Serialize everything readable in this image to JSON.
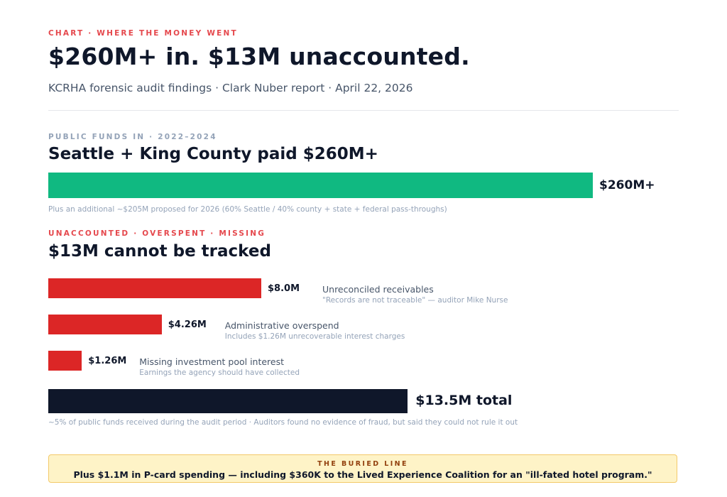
{
  "header": {
    "eyebrow": "CHART · WHERE THE MONEY WENT",
    "title": "$260M+ in. $13M unaccounted.",
    "subtitle": "KCRHA forensic audit findings · Clark Nuber report · April 22, 2026"
  },
  "funds_section": {
    "eyebrow": "PUBLIC FUNDS IN · 2022–2024",
    "title": "Seattle + King County paid $260M+",
    "note": "Plus an additional ~$205M proposed for 2026 (60% Seattle / 40% county + state + federal pass-throughs)"
  },
  "unaccounted_section": {
    "eyebrow": "UNACCOUNTED · OVERSPENT · MISSING",
    "title": "$13M cannot be tracked",
    "footnote": "~5% of public funds received during the audit period · Auditors found no evidence of fraud, but said they could not rule it out"
  },
  "callout": {
    "label": "THE BURIED LINE",
    "text": "Plus $1.1M in P-card spending — including $360K to the Lived Experience Coalition for an \"ill-fated hotel program.\""
  },
  "colors": {
    "funds": "#10b981",
    "unaccounted": "#dc2626",
    "total": "#0f172a",
    "accent_red": "#e5484d"
  },
  "chart_data": [
    {
      "type": "bar",
      "orientation": "horizontal",
      "categories": [
        "Public funds in"
      ],
      "values": [
        260
      ],
      "value_labels": [
        "$260M+"
      ],
      "unit": "$M"
    },
    {
      "type": "bar",
      "orientation": "horizontal",
      "unit": "$M",
      "categories": [
        "Unreconciled receivables",
        "Administrative overspend",
        "Missing investment pool interest"
      ],
      "values": [
        8.0,
        4.26,
        1.26
      ],
      "value_labels": [
        "$8.0M",
        "$4.26M",
        "$1.26M"
      ],
      "descriptions": [
        "\"Records are not traceable\" — auditor Mike Nurse",
        "Includes $1.26M unrecoverable interest charges",
        "Earnings the agency should have collected"
      ],
      "total": {
        "value": 13.5,
        "label": "$13.5M total"
      }
    }
  ]
}
